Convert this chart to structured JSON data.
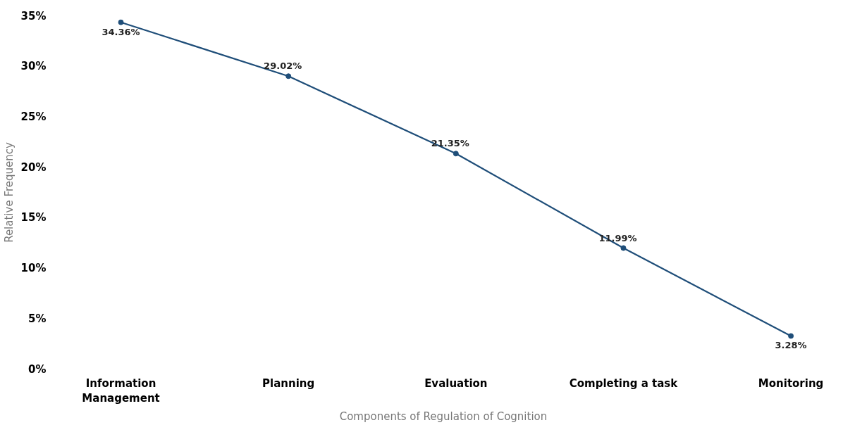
{
  "chart_data": {
    "type": "line",
    "xlabel": "Components of Regulation of Cognition",
    "ylabel": "Relative Frequency",
    "categories": [
      "Information Management",
      "Planning",
      "Evaluation",
      "Completing a task",
      "Monitoring"
    ],
    "series": [
      {
        "color": "#1f4e79",
        "values": [
          34.36,
          29.02,
          21.35,
          11.99,
          3.28
        ],
        "value_labels": [
          "34.36%",
          "29.02%",
          "21.35%",
          "11.99%",
          "3.28%"
        ]
      }
    ],
    "ylim": [
      0,
      35
    ],
    "yticks": [
      {
        "value": 0,
        "label": "0%"
      },
      {
        "value": 5,
        "label": "5%"
      },
      {
        "value": 10,
        "label": "10%"
      },
      {
        "value": 15,
        "label": "15%"
      },
      {
        "value": 20,
        "label": "20%"
      },
      {
        "value": 25,
        "label": "25%"
      },
      {
        "value": 30,
        "label": "30%"
      },
      {
        "value": 35,
        "label": "35%"
      }
    ],
    "grid": false,
    "marker": "circle",
    "line_style": "solid"
  }
}
